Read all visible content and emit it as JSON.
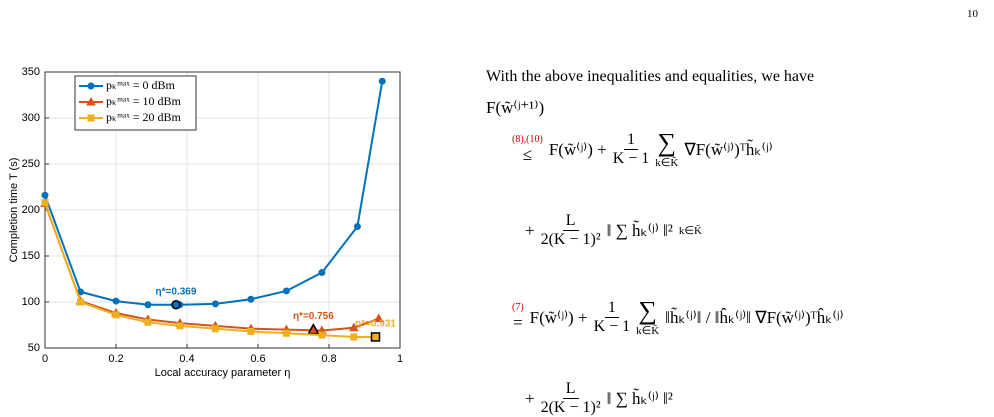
{
  "page_number": "10",
  "chart_data": {
    "type": "line",
    "xlabel": "Local accuracy parameter η",
    "ylabel": "Completion time T (s)",
    "xlim": [
      0,
      1
    ],
    "ylim": [
      50,
      350
    ],
    "xticks": [
      0,
      0.2,
      0.4,
      0.6,
      0.8,
      1
    ],
    "yticks": [
      50,
      100,
      150,
      200,
      250,
      300,
      350
    ],
    "grid": true,
    "legend": "upper left",
    "series": [
      {
        "name": "pₖᵐᵃˣ = 0 dBm",
        "color": "#0072bd",
        "marker": "circle",
        "x": [
          0,
          0.1,
          0.2,
          0.29,
          0.38,
          0.48,
          0.58,
          0.68,
          0.78,
          0.88,
          0.95
        ],
        "values": [
          216,
          111,
          101,
          97,
          97,
          98,
          103,
          112,
          132,
          182,
          340
        ],
        "optimum": {
          "x": 0.369,
          "y": 97,
          "label": "η*=0.369"
        }
      },
      {
        "name": "pₖᵐᵃˣ = 10 dBm",
        "color": "#d95319",
        "marker": "triangle",
        "x": [
          0,
          0.1,
          0.2,
          0.29,
          0.38,
          0.48,
          0.58,
          0.68,
          0.78,
          0.87,
          0.94
        ],
        "values": [
          207,
          101,
          88,
          81,
          77,
          74,
          71,
          70,
          69,
          72,
          82
        ],
        "optimum": {
          "x": 0.756,
          "y": 70,
          "label": "η*=0.756"
        }
      },
      {
        "name": "pₖᵐᵃˣ = 20 dBm",
        "color": "#edb120",
        "marker": "square",
        "x": [
          0,
          0.1,
          0.2,
          0.29,
          0.38,
          0.48,
          0.58,
          0.68,
          0.78,
          0.87,
          0.93
        ],
        "values": [
          208,
          100,
          86,
          78,
          74,
          71,
          68,
          66,
          64,
          62,
          62
        ],
        "optimum": {
          "x": 0.931,
          "y": 62,
          "label": "η*=0.931"
        }
      }
    ]
  },
  "text": {
    "intro": "With the above inequalities and equalities, we have",
    "lhs": "F(w̃⁽ʲ⁺¹⁾)",
    "lines": [
      {
        "ref": "(8),(10)",
        "rel": "≤",
        "pre": "F(w̃⁽ʲ⁾) +",
        "num": "1",
        "den": "K − 1",
        "sum": "∑",
        "sub": "k∈K̃",
        "post": "∇F(w̃⁽ʲ⁾)ᵀh̃ₖ⁽ʲ⁾"
      },
      {
        "pre": "+",
        "num": "L",
        "den": "2(K − 1)²",
        "post": "‖ ∑ h̃ₖ⁽ʲ⁾ ‖²",
        "sub": "k∈K̃"
      },
      {
        "ref": "(7)",
        "rel": "=",
        "pre": "F(w̃⁽ʲ⁾) +",
        "num": "1",
        "den": "K − 1",
        "sum": "∑",
        "sub": "k∈K̃",
        "post": "‖h̃ₖ⁽ʲ⁾‖ / ‖ĥₖ⁽ʲ⁾‖ ∇F(w̃⁽ʲ⁾)ᵀĥₖ⁽ʲ⁾"
      },
      {
        "pre": "+",
        "num": "L",
        "den": "2(K − 1)²",
        "post": "‖ ∑ h̃ₖ⁽ʲ⁾ ‖²"
      }
    ]
  }
}
